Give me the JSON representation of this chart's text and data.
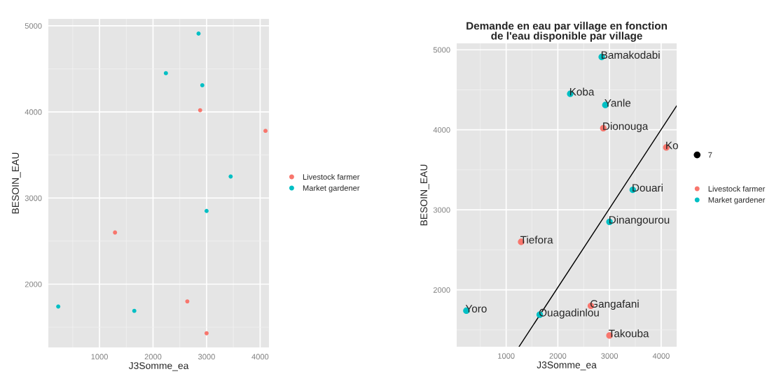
{
  "chart_data": [
    {
      "type": "scatter",
      "xlabel": "J3Somme_ea",
      "ylabel": "BESOIN_EAU",
      "xlim": [
        45,
        4165
      ],
      "ylim": [
        1265,
        5080
      ],
      "xticks": [
        1000,
        2000,
        3000,
        4000
      ],
      "yticks": [
        2000,
        3000,
        4000,
        5000
      ],
      "grid": true,
      "legend": "right",
      "marker": "circle",
      "series": [
        {
          "name": "Livestock farmer",
          "color": "#f8766d",
          "x": [
            2880,
            4100,
            1290,
            2640,
            3000
          ],
          "values": [
            4020,
            3780,
            2600,
            1800,
            1430
          ]
        },
        {
          "name": "Market gardener",
          "color": "#00bfc4",
          "x": [
            2850,
            2240,
            2920,
            3450,
            3000,
            230,
            1650
          ],
          "values": [
            4910,
            4450,
            4310,
            3250,
            2850,
            1740,
            1690
          ]
        }
      ]
    },
    {
      "type": "scatter",
      "title": "Demande en eau par village en fonction\nde l'eau disponible par village",
      "xlabel": "J3Somme_ea",
      "ylabel": "BESOIN_EAU",
      "xlim": [
        43,
        4300
      ],
      "ylim": [
        1290,
        5080
      ],
      "xticks": [
        1000,
        2000,
        3000,
        4000
      ],
      "yticks": [
        2000,
        3000,
        4000,
        5000
      ],
      "grid": true,
      "legend": "right",
      "marker": "circle",
      "legend_title": "7",
      "series": [
        {
          "type": "line",
          "marker": "none",
          "color": "#000000",
          "x": [
            1250,
            4300
          ],
          "values": [
            1290,
            4300
          ]
        },
        {
          "name": "Livestock farmer",
          "color": "#f8766d",
          "x": [
            2880,
            4100,
            1290,
            2640,
            3000
          ],
          "values": [
            4020,
            3780,
            2600,
            1800,
            1430
          ]
        },
        {
          "name": "Market gardener",
          "color": "#00bfc4",
          "x": [
            2850,
            2240,
            2920,
            3450,
            3000,
            230,
            1650
          ],
          "values": [
            4910,
            4450,
            4310,
            3250,
            2850,
            1740,
            1690
          ]
        }
      ],
      "annotations": [
        {
          "text": "Bamakodabi",
          "x": 2850,
          "y": 4910
        },
        {
          "text": "Koba",
          "x": 2240,
          "y": 4450
        },
        {
          "text": "Yanle",
          "x": 2920,
          "y": 4310
        },
        {
          "text": "Dionouga",
          "x": 2880,
          "y": 4020
        },
        {
          "text": "Ko",
          "x": 4100,
          "y": 3780
        },
        {
          "text": "Douari",
          "x": 3450,
          "y": 3250
        },
        {
          "text": "Dinangourou",
          "x": 3000,
          "y": 2850
        },
        {
          "text": "Tiefora",
          "x": 1290,
          "y": 2600
        },
        {
          "text": "Yoro",
          "x": 230,
          "y": 1740
        },
        {
          "text": "Ouagadinlou",
          "x": 1650,
          "y": 1690
        },
        {
          "text": "Gangafani",
          "x": 2640,
          "y": 1800
        },
        {
          "text": "Takouba",
          "x": 3000,
          "y": 1430
        }
      ]
    }
  ]
}
